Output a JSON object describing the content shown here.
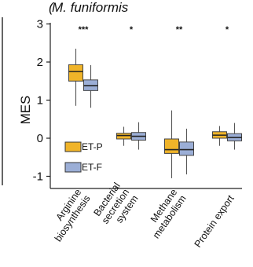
{
  "chart_data": {
    "type": "boxplot",
    "title": "M. funiformis",
    "panel_letter_partial": "(",
    "ylabel": "MES",
    "ylim": [
      -1.25,
      3.05
    ],
    "yticks": [
      "-1",
      "0",
      "1",
      "2",
      "3"
    ],
    "grid": false,
    "legend_position": "inside-bottom-left",
    "categories": [
      {
        "label_lines": [
          "Arginine",
          "biosynthesis"
        ],
        "significance": "***"
      },
      {
        "label_lines": [
          "Bacterial",
          "secretion",
          "system"
        ],
        "significance": "*"
      },
      {
        "label_lines": [
          "Methane",
          "metabolism"
        ],
        "significance": "**"
      },
      {
        "label_lines": [
          "Protein export"
        ],
        "significance": "*"
      }
    ],
    "series": [
      {
        "name": "ET-P",
        "color": "#F0B429",
        "boxes": [
          {
            "whisker_low": 0.85,
            "q1": 1.5,
            "median": 1.75,
            "q3": 1.93,
            "whisker_high": 2.35
          },
          {
            "whisker_low": -0.2,
            "q1": -0.02,
            "median": 0.07,
            "q3": 0.13,
            "whisker_high": 0.3
          },
          {
            "whisker_low": -1.05,
            "q1": -0.4,
            "median": -0.3,
            "q3": -0.02,
            "whisker_high": 0.73
          },
          {
            "whisker_low": -0.2,
            "q1": 0.0,
            "median": 0.08,
            "q3": 0.17,
            "whisker_high": 0.32
          }
        ]
      },
      {
        "name": "ET-F",
        "color": "#9BAED6",
        "boxes": [
          {
            "whisker_low": 0.8,
            "q1": 1.25,
            "median": 1.38,
            "q3": 1.53,
            "whisker_high": 1.92
          },
          {
            "whisker_low": -0.3,
            "q1": -0.05,
            "median": 0.05,
            "q3": 0.15,
            "whisker_high": 0.42
          },
          {
            "whisker_low": -0.95,
            "q1": -0.45,
            "median": -0.3,
            "q3": -0.1,
            "whisker_high": 0.25
          },
          {
            "whisker_low": -0.3,
            "q1": -0.07,
            "median": 0.02,
            "q3": 0.12,
            "whisker_high": 0.4
          }
        ]
      }
    ]
  }
}
